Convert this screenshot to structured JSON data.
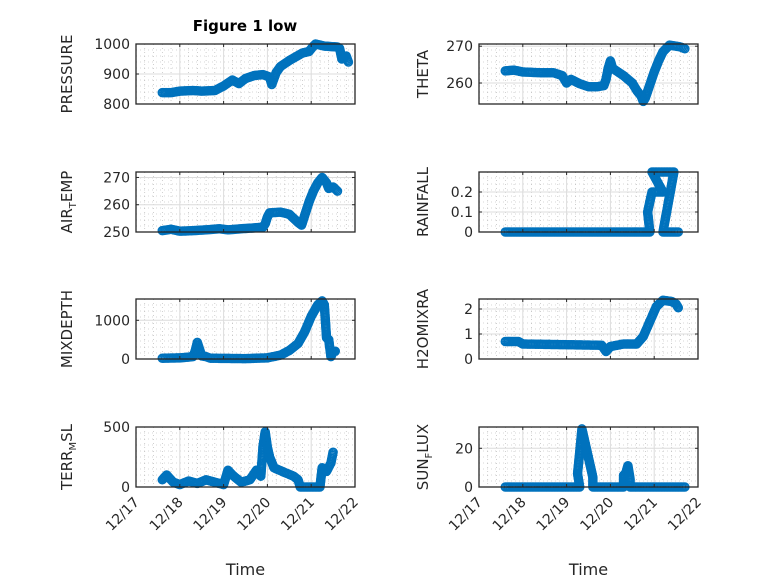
{
  "figure": {
    "title": "Figure 1 low",
    "marker_color": "#0072BD"
  },
  "chart_data": [
    {
      "type": "scatter",
      "title": "Figure 1 low",
      "ylabel": "PRESSURE",
      "ylabel_sub": null,
      "xlabel": "",
      "x_ticks": [
        "12/17",
        "12/18",
        "12/19",
        "12/20",
        "12/21",
        "12/22"
      ],
      "xlim_days": [
        0,
        5
      ],
      "ylim": [
        800,
        1000
      ],
      "y_ticks": [
        800,
        900,
        1000
      ],
      "grid": true,
      "minor_grid": true,
      "points": [
        [
          0.6,
          838
        ],
        [
          0.8,
          838
        ],
        [
          1.0,
          843
        ],
        [
          1.3,
          845
        ],
        [
          1.5,
          843
        ],
        [
          1.8,
          845
        ],
        [
          2.0,
          860
        ],
        [
          2.2,
          880
        ],
        [
          2.35,
          868
        ],
        [
          2.5,
          885
        ],
        [
          2.7,
          895
        ],
        [
          2.9,
          898
        ],
        [
          3.05,
          890
        ],
        [
          3.1,
          865
        ],
        [
          3.2,
          905
        ],
        [
          3.3,
          925
        ],
        [
          3.5,
          945
        ],
        [
          3.8,
          970
        ],
        [
          3.95,
          975
        ],
        [
          4.05,
          993
        ],
        [
          4.1,
          1000
        ],
        [
          4.3,
          993
        ],
        [
          4.6,
          990
        ],
        [
          4.65,
          985
        ],
        [
          4.7,
          950
        ],
        [
          4.8,
          960
        ],
        [
          4.85,
          940
        ]
      ]
    },
    {
      "type": "scatter",
      "ylabel": "THETA",
      "xlabel": "",
      "x_ticks": [
        "12/17",
        "12/18",
        "12/19",
        "12/20",
        "12/21",
        "12/22"
      ],
      "xlim_days": [
        0,
        5
      ],
      "ylim": [
        254.3,
        270.6
      ],
      "y_ticks": [
        260,
        270
      ],
      "grid": true,
      "minor_grid": true,
      "points": [
        [
          0.6,
          263.3
        ],
        [
          0.8,
          263.5
        ],
        [
          1.0,
          263
        ],
        [
          1.4,
          262.8
        ],
        [
          1.7,
          262.8
        ],
        [
          1.9,
          262
        ],
        [
          2.0,
          260
        ],
        [
          2.1,
          261
        ],
        [
          2.3,
          259.8
        ],
        [
          2.5,
          259
        ],
        [
          2.7,
          259
        ],
        [
          2.85,
          259.3
        ],
        [
          2.9,
          261
        ],
        [
          2.95,
          264
        ],
        [
          3.0,
          266
        ],
        [
          3.05,
          264
        ],
        [
          3.3,
          262
        ],
        [
          3.5,
          260
        ],
        [
          3.6,
          258
        ],
        [
          3.7,
          256.5
        ],
        [
          3.75,
          255
        ],
        [
          3.8,
          256
        ],
        [
          3.9,
          259.5
        ],
        [
          4.0,
          263
        ],
        [
          4.1,
          266
        ],
        [
          4.2,
          268.5
        ],
        [
          4.35,
          270.3
        ],
        [
          4.6,
          269.8
        ],
        [
          4.7,
          269.3
        ]
      ]
    },
    {
      "type": "scatter",
      "ylabel": "AIR",
      "ylabel_sub": "T",
      "ylabel_rest": "EMP",
      "xlabel": "",
      "x_ticks": [
        "12/17",
        "12/18",
        "12/19",
        "12/20",
        "12/21",
        "12/22"
      ],
      "xlim_days": [
        0,
        5
      ],
      "ylim": [
        250,
        272
      ],
      "y_ticks": [
        250,
        260,
        270
      ],
      "grid": true,
      "minor_grid": true,
      "points": [
        [
          0.6,
          250.5
        ],
        [
          0.8,
          251
        ],
        [
          1.0,
          250.3
        ],
        [
          1.3,
          250.5
        ],
        [
          1.6,
          250.8
        ],
        [
          1.9,
          251.2
        ],
        [
          2.1,
          250.8
        ],
        [
          2.4,
          251.2
        ],
        [
          2.7,
          251.5
        ],
        [
          2.9,
          251.8
        ],
        [
          2.95,
          253
        ],
        [
          3.0,
          255.5
        ],
        [
          3.05,
          257
        ],
        [
          3.3,
          257.3
        ],
        [
          3.5,
          256.5
        ],
        [
          3.6,
          255
        ],
        [
          3.7,
          253.5
        ],
        [
          3.78,
          252.5
        ],
        [
          3.85,
          256
        ],
        [
          3.95,
          261
        ],
        [
          4.05,
          265
        ],
        [
          4.15,
          268
        ],
        [
          4.25,
          270
        ],
        [
          4.35,
          268
        ],
        [
          4.4,
          266
        ],
        [
          4.5,
          266.5
        ],
        [
          4.6,
          265
        ]
      ]
    },
    {
      "type": "scatter",
      "ylabel": "RAINFALL",
      "xlabel": "",
      "x_ticks": [
        "12/17",
        "12/18",
        "12/19",
        "12/20",
        "12/21",
        "12/22"
      ],
      "xlim_days": [
        0,
        5
      ],
      "ylim": [
        0,
        0.3
      ],
      "y_ticks": [
        0,
        0.1,
        0.2
      ],
      "grid": true,
      "minor_grid": true,
      "points": [
        [
          0.6,
          0
        ],
        [
          3.9,
          0
        ],
        [
          3.85,
          0.1
        ],
        [
          3.95,
          0.2
        ],
        [
          4.2,
          0.2
        ],
        [
          3.95,
          0.3
        ],
        [
          4.2,
          0.3
        ],
        [
          4.45,
          0.3
        ],
        [
          4.2,
          0
        ],
        [
          4.55,
          0
        ]
      ]
    },
    {
      "type": "scatter",
      "ylabel": "MIXDEPTH",
      "xlabel": "",
      "x_ticks": [
        "12/17",
        "12/18",
        "12/19",
        "12/20",
        "12/21",
        "12/22"
      ],
      "xlim_days": [
        0,
        5
      ],
      "ylim": [
        0,
        1550
      ],
      "y_ticks": [
        0,
        1000
      ],
      "grid": true,
      "minor_grid": true,
      "points": [
        [
          0.6,
          20
        ],
        [
          1.0,
          30
        ],
        [
          1.3,
          60
        ],
        [
          1.35,
          200
        ],
        [
          1.4,
          430
        ],
        [
          1.5,
          80
        ],
        [
          1.6,
          60
        ],
        [
          1.7,
          20
        ],
        [
          2.5,
          10
        ],
        [
          3.0,
          30
        ],
        [
          3.3,
          100
        ],
        [
          3.5,
          220
        ],
        [
          3.7,
          400
        ],
        [
          3.85,
          700
        ],
        [
          4.0,
          1100
        ],
        [
          4.15,
          1400
        ],
        [
          4.25,
          1500
        ],
        [
          4.3,
          1400
        ],
        [
          4.35,
          550
        ],
        [
          4.4,
          500
        ],
        [
          4.45,
          60
        ],
        [
          4.5,
          180
        ],
        [
          4.55,
          200
        ]
      ]
    },
    {
      "type": "scatter",
      "ylabel": "H2OMIXRA",
      "xlabel": "",
      "x_ticks": [
        "12/17",
        "12/18",
        "12/19",
        "12/20",
        "12/21",
        "12/22"
      ],
      "xlim_days": [
        0,
        5
      ],
      "ylim": [
        0,
        2.4
      ],
      "y_ticks": [
        0,
        1,
        2
      ],
      "grid": true,
      "minor_grid": true,
      "points": [
        [
          0.6,
          0.7
        ],
        [
          0.9,
          0.7
        ],
        [
          1.0,
          0.6
        ],
        [
          2.8,
          0.55
        ],
        [
          2.9,
          0.3
        ],
        [
          3.0,
          0.5
        ],
        [
          3.3,
          0.6
        ],
        [
          3.5,
          0.6
        ],
        [
          3.6,
          0.6
        ],
        [
          3.75,
          0.9
        ],
        [
          3.85,
          1.3
        ],
        [
          3.95,
          1.7
        ],
        [
          4.05,
          2.1
        ],
        [
          4.2,
          2.35
        ],
        [
          4.4,
          2.3
        ],
        [
          4.5,
          2.2
        ],
        [
          4.55,
          2.05
        ]
      ]
    },
    {
      "type": "scatter",
      "ylabel": "TERR",
      "ylabel_sub": "M",
      "ylabel_rest": "SL",
      "xlabel": "Time",
      "x_ticks": [
        "12/17",
        "12/18",
        "12/19",
        "12/20",
        "12/21",
        "12/22"
      ],
      "xlim_days": [
        0,
        5
      ],
      "ylim": [
        0,
        500
      ],
      "y_ticks": [
        0,
        500
      ],
      "grid": true,
      "minor_grid": true,
      "points": [
        [
          0.6,
          60
        ],
        [
          0.7,
          100
        ],
        [
          0.85,
          40
        ],
        [
          1.0,
          20
        ],
        [
          1.2,
          50
        ],
        [
          1.4,
          30
        ],
        [
          1.6,
          60
        ],
        [
          1.8,
          40
        ],
        [
          2.0,
          20
        ],
        [
          2.1,
          140
        ],
        [
          2.2,
          100
        ],
        [
          2.4,
          40
        ],
        [
          2.6,
          60
        ],
        [
          2.75,
          140
        ],
        [
          2.85,
          90
        ],
        [
          2.9,
          340
        ],
        [
          2.95,
          460
        ],
        [
          3.0,
          330
        ],
        [
          3.05,
          250
        ],
        [
          3.15,
          160
        ],
        [
          3.4,
          120
        ],
        [
          3.6,
          90
        ],
        [
          3.7,
          60
        ],
        [
          3.75,
          0
        ],
        [
          4.2,
          0
        ],
        [
          4.25,
          160
        ],
        [
          4.35,
          130
        ],
        [
          4.45,
          200
        ],
        [
          4.5,
          290
        ]
      ]
    },
    {
      "type": "scatter",
      "ylabel": "SUN",
      "ylabel_sub": "F",
      "ylabel_rest": "LUX",
      "xlabel": "Time",
      "x_ticks": [
        "12/17",
        "12/18",
        "12/19",
        "12/20",
        "12/21",
        "12/22"
      ],
      "xlim_days": [
        0,
        5
      ],
      "ylim": [
        0,
        31
      ],
      "y_ticks": [
        0,
        20
      ],
      "grid": true,
      "minor_grid": true,
      "points": [
        [
          0.6,
          0
        ],
        [
          2.3,
          0
        ],
        [
          2.25,
          7
        ],
        [
          2.3,
          18
        ],
        [
          2.35,
          30
        ],
        [
          2.4,
          25
        ],
        [
          2.45,
          20
        ],
        [
          2.5,
          15
        ],
        [
          2.55,
          10
        ],
        [
          2.6,
          5
        ],
        [
          2.6,
          0
        ],
        [
          3.3,
          0
        ],
        [
          3.3,
          6
        ],
        [
          3.35,
          7
        ],
        [
          3.4,
          11
        ],
        [
          3.45,
          4
        ],
        [
          3.45,
          0
        ],
        [
          4.7,
          0
        ]
      ]
    }
  ]
}
